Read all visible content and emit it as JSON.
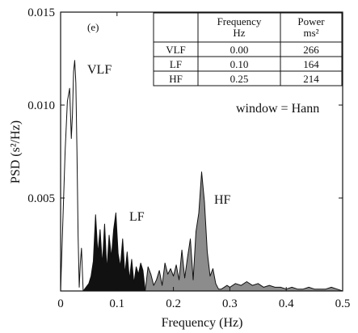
{
  "chart_data": {
    "type": "area",
    "panel_label": "(e)",
    "xlabel": "Frequency (Hz)",
    "ylabel": "PSD (s²/Hz)",
    "xlim": [
      0,
      0.5
    ],
    "ylim": [
      0,
      0.015
    ],
    "x_ticks": [
      "0",
      "0.1",
      "0.2",
      "0.3",
      "0.4",
      "0.5"
    ],
    "y_ticks": [
      "0.005",
      "0.010",
      "0.015"
    ],
    "annotation": "window = Hann",
    "band_labels": [
      "VLF",
      "LF",
      "HF"
    ],
    "table": {
      "headers": [
        "",
        "Frequency Hz",
        "Power ms²"
      ],
      "rows": [
        [
          "VLF",
          "0.00",
          "266"
        ],
        [
          "LF",
          "0.10",
          "164"
        ],
        [
          "HF",
          "0.25",
          "214"
        ]
      ]
    },
    "series": [
      {
        "name": "VLF",
        "fill": "#ffffff",
        "x": [
          0.0,
          0.008,
          0.012,
          0.016,
          0.019,
          0.021,
          0.023,
          0.025,
          0.027,
          0.029,
          0.031,
          0.033,
          0.035,
          0.037,
          0.04
        ],
        "y": [
          0.0,
          0.0075,
          0.0102,
          0.0109,
          0.0082,
          0.0095,
          0.0118,
          0.0124,
          0.0112,
          0.0075,
          0.003,
          0.0002,
          0.0015,
          0.0023,
          0.0
        ]
      },
      {
        "name": "LF",
        "fill": "#111111",
        "x": [
          0.04,
          0.045,
          0.05,
          0.054,
          0.058,
          0.062,
          0.066,
          0.07,
          0.074,
          0.078,
          0.082,
          0.086,
          0.09,
          0.094,
          0.098,
          0.102,
          0.106,
          0.11,
          0.114,
          0.118,
          0.122,
          0.126,
          0.13,
          0.134,
          0.138,
          0.142,
          0.146,
          0.15
        ],
        "y": [
          0.0,
          0.0002,
          0.0004,
          0.0008,
          0.0016,
          0.0041,
          0.002,
          0.0033,
          0.0014,
          0.0036,
          0.0011,
          0.003,
          0.0018,
          0.0033,
          0.0042,
          0.002,
          0.0013,
          0.0028,
          0.0009,
          0.0021,
          0.0006,
          0.0017,
          0.0004,
          0.0013,
          0.0009,
          0.0015,
          0.0011,
          0.0
        ]
      },
      {
        "name": "HF",
        "fill": "#8c8c8c",
        "x": [
          0.15,
          0.155,
          0.16,
          0.165,
          0.17,
          0.175,
          0.18,
          0.185,
          0.19,
          0.195,
          0.2,
          0.205,
          0.21,
          0.215,
          0.22,
          0.225,
          0.23,
          0.235,
          0.24,
          0.245,
          0.25,
          0.255,
          0.26,
          0.265,
          0.27,
          0.275,
          0.28,
          0.285,
          0.29,
          0.295,
          0.3,
          0.31,
          0.32,
          0.33,
          0.34,
          0.35,
          0.36,
          0.37,
          0.38,
          0.39,
          0.4,
          0.41,
          0.42,
          0.43,
          0.44,
          0.45,
          0.46,
          0.47,
          0.48,
          0.49,
          0.5
        ],
        "y": [
          0.0,
          0.0013,
          0.0009,
          0.0003,
          0.0006,
          0.0011,
          0.0003,
          0.0015,
          0.0009,
          0.0012,
          0.0008,
          0.0014,
          0.0006,
          0.0022,
          0.0007,
          0.0018,
          0.0028,
          0.0006,
          0.0032,
          0.0042,
          0.0064,
          0.0048,
          0.0021,
          0.0008,
          0.0012,
          0.0004,
          0.0001,
          0.0001,
          0.0002,
          0.0003,
          0.0002,
          0.0004,
          0.0003,
          0.0005,
          0.0003,
          0.0004,
          0.0002,
          0.0003,
          0.0002,
          0.0002,
          0.0001,
          0.0002,
          0.0001,
          0.0001,
          0.0002,
          0.0001,
          0.0001,
          0.0001,
          0.0002,
          0.0001,
          0.0
        ]
      }
    ]
  }
}
